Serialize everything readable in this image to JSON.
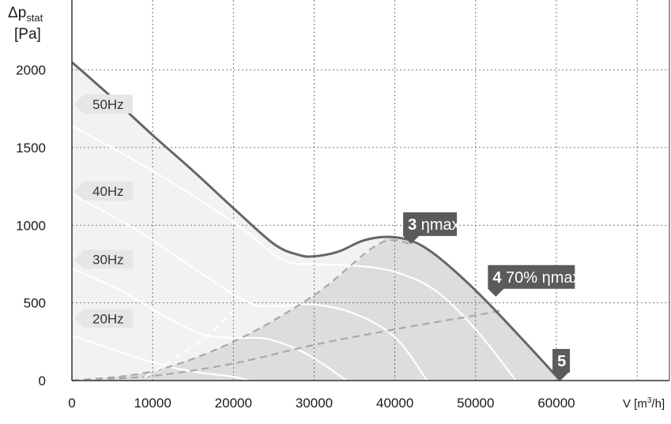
{
  "chart_data": {
    "type": "line",
    "xlabel": "V",
    "xunit": "m",
    "xunit_sup": "3",
    "xunit_end": "/h",
    "ylabel": "Δp",
    "ylabel_sub": "stat",
    "yunit": "[Pa]",
    "xlim": [
      0,
      74000
    ],
    "ylim": [
      0,
      2450
    ],
    "xticks": [
      0,
      10000,
      20000,
      30000,
      40000,
      50000,
      60000
    ],
    "yticks": [
      0,
      500,
      1000,
      1500,
      2000
    ],
    "grid": true,
    "colors": {
      "plot_bg": "#ffffff",
      "region_light": "#f2f2f2",
      "region_mid": "#e9e9e9",
      "region_dark": "#d3d3d3",
      "curve": "#666666",
      "dashed": "#a8a8a8",
      "speed_lines": "#ffffff",
      "label_bg": "#5b5b5b",
      "hz_label_bg": "#e6e6e6"
    },
    "max_curve": {
      "x": [
        0,
        5000,
        10000,
        15000,
        20000,
        25000,
        28000,
        30000,
        33000,
        36000,
        39000,
        42000,
        45000,
        50000,
        55000,
        60500
      ],
      "y": [
        2050,
        1820,
        1580,
        1350,
        1110,
        880,
        810,
        800,
        830,
        900,
        925,
        900,
        810,
        580,
        310,
        0
      ]
    },
    "speed_curves": [
      {
        "name": "50Hz",
        "x": [
          0,
          10000,
          20000,
          26000,
          30000,
          35000,
          40000,
          45000,
          50000,
          55000
        ],
        "y": [
          1640,
          1350,
          1020,
          780,
          750,
          740,
          700,
          580,
          330,
          0
        ]
      },
      {
        "name": "40Hz",
        "x": [
          0,
          8000,
          16000,
          22000,
          26000,
          30000,
          35000,
          40000,
          44000
        ],
        "y": [
          1200,
          970,
          690,
          500,
          480,
          490,
          430,
          280,
          0
        ]
      },
      {
        "name": "30Hz",
        "x": [
          0,
          6000,
          12000,
          16000,
          20000,
          24000,
          28000,
          31000,
          34000
        ],
        "y": [
          720,
          580,
          400,
          300,
          275,
          270,
          200,
          110,
          0
        ]
      },
      {
        "name": "20Hz",
        "x": [
          0,
          4000,
          8000,
          12000,
          16000,
          20000,
          22000
        ],
        "y": [
          290,
          220,
          150,
          90,
          50,
          25,
          0
        ]
      }
    ],
    "system_curves": [
      {
        "name": "3",
        "x": [
          0,
          10000,
          20000,
          30000,
          38000,
          42000
        ],
        "y": [
          0,
          60,
          250,
          550,
          880,
          880
        ]
      },
      {
        "name": "4",
        "x": [
          0,
          10000,
          20000,
          30000,
          40000,
          50000,
          53000
        ],
        "y": [
          0,
          30,
          110,
          230,
          330,
          420,
          450
        ]
      },
      {
        "name": "inner",
        "x": [
          9000,
          13000,
          17000,
          20000
        ],
        "y": [
          20,
          150,
          300,
          450
        ]
      }
    ],
    "operating_points": [
      {
        "id": "3",
        "label": "ηmax",
        "x": 42000,
        "y": 880
      },
      {
        "id": "4",
        "label": "70% ηmax",
        "x": 52500,
        "y": 540
      },
      {
        "id": "5",
        "label": "",
        "x": 60500,
        "y": 0
      }
    ]
  }
}
